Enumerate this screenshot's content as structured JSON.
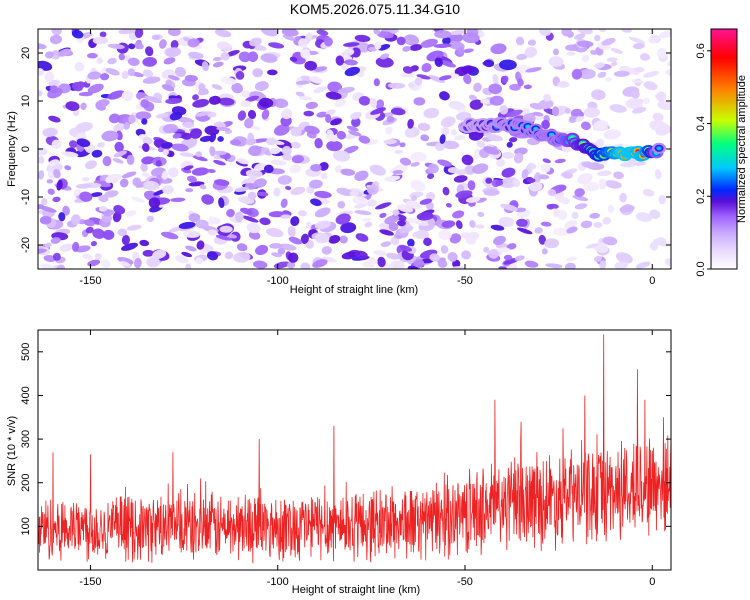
{
  "title": "KOM5.2026.075.11.34.G10",
  "colors": {
    "snr_line": "#ee2222",
    "frame": "#000000",
    "colormap": [
      "#ffffff",
      "#e8d9ff",
      "#c9a9ff",
      "#9e61ff",
      "#7b2cf0",
      "#5a10d8",
      "#0028ff",
      "#00c8ff",
      "#00ff80",
      "#c8ff00",
      "#ff7f00",
      "#ff0000",
      "#ff1493"
    ]
  },
  "chart_data": [
    {
      "type": "heatmap",
      "title": "KOM5.2026.075.11.34.G10",
      "xlabel": "Height of straight line (km)",
      "ylabel": "Frequency (Hz)",
      "colorbar_label": "Normalized spectral amplitude",
      "xlim": [
        -164,
        5
      ],
      "ylim": [
        -25,
        25
      ],
      "x_ticks": [
        -150,
        -100,
        -50,
        0
      ],
      "y_ticks": [
        -20,
        -10,
        0,
        10,
        20
      ],
      "colorbar_range": [
        0.0,
        0.66
      ],
      "colorbar_ticks": [
        "0.0",
        "0.2",
        "0.4",
        "0.6"
      ],
      "grid": false,
      "signal_track": [
        {
          "x": -50,
          "y": 5,
          "amp": 0.22
        },
        {
          "x": -36,
          "y": 5,
          "amp": 0.28
        },
        {
          "x": -25,
          "y": 2,
          "amp": 0.3
        },
        {
          "x": -22,
          "y": 2,
          "amp": 0.36
        },
        {
          "x": -15,
          "y": -1,
          "amp": 0.45
        },
        {
          "x": -8,
          "y": -1,
          "amp": 0.62
        },
        {
          "x": -2,
          "y": -1,
          "amp": 0.6
        },
        {
          "x": 2,
          "y": 0,
          "amp": 0.25
        }
      ]
    },
    {
      "type": "line",
      "xlabel": "Height of straight line (km)",
      "ylabel": "SNR (10 * v/v)",
      "xlim": [
        -164,
        5
      ],
      "ylim": [
        0,
        550
      ],
      "x_ticks": [
        -150,
        -100,
        -50,
        0
      ],
      "y_ticks": [
        100,
        200,
        300,
        400,
        500
      ],
      "grid": false,
      "baseline_profile": [
        {
          "x": -164,
          "mean": 95,
          "spread": 85
        },
        {
          "x": -100,
          "mean": 100,
          "spread": 90
        },
        {
          "x": -60,
          "mean": 110,
          "spread": 100
        },
        {
          "x": -40,
          "mean": 150,
          "spread": 120
        },
        {
          "x": -20,
          "mean": 170,
          "spread": 130
        },
        {
          "x": 5,
          "mean": 200,
          "spread": 140
        }
      ],
      "peaks": [
        {
          "x": -13,
          "y": 540
        },
        {
          "x": -4,
          "y": 460
        },
        {
          "x": -2,
          "y": 390
        },
        {
          "x": -18,
          "y": 400
        },
        {
          "x": -35,
          "y": 340
        },
        {
          "x": -42,
          "y": 390
        },
        {
          "x": -85,
          "y": 330
        },
        {
          "x": -105,
          "y": 300
        },
        {
          "x": -128,
          "y": 270
        },
        {
          "x": -160,
          "y": 270
        },
        {
          "x": -150,
          "y": 265
        },
        {
          "x": 3,
          "y": 350
        }
      ]
    }
  ]
}
